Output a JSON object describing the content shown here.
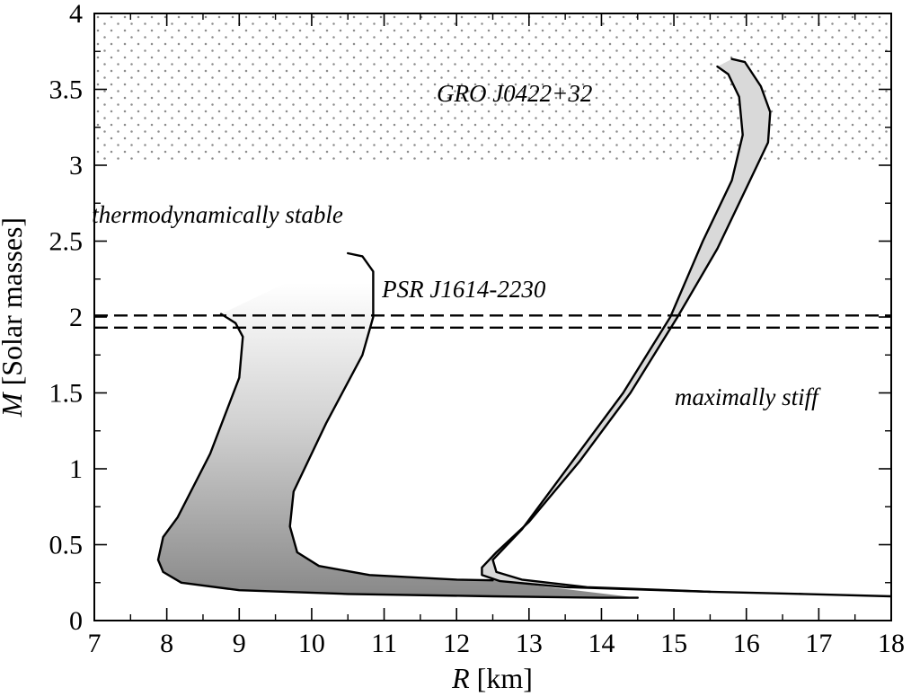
{
  "chart_data": {
    "type": "line",
    "title": "",
    "xlabel": {
      "var": "R",
      "unit": " [km]"
    },
    "ylabel": {
      "var": "M",
      "unit": " [Solar masses]"
    },
    "xlim": [
      7,
      18
    ],
    "ylim": [
      0,
      4
    ],
    "xticks": [
      7,
      8,
      9,
      10,
      11,
      12,
      13,
      14,
      15,
      16,
      17,
      18
    ],
    "yticks": [
      0,
      0.5,
      1,
      1.5,
      2,
      2.5,
      3,
      3.5,
      4
    ],
    "ytick_labels": [
      "0",
      "0.5",
      "1",
      "1.5",
      "2",
      "2.5",
      "3",
      "3.5",
      "4"
    ],
    "grid": false,
    "regions": [
      {
        "name": "GRO J0422+32",
        "type": "dotted-band",
        "y_range": [
          3.02,
          4.0
        ],
        "color": "#8c8c8c"
      }
    ],
    "reference_lines": [
      {
        "name": "PSR J1614-2230",
        "style": "dashed",
        "y": [
          2.01,
          1.93
        ]
      }
    ],
    "annotations": [
      {
        "text": "GRO J0422+32",
        "x": 12.8,
        "y": 3.42
      },
      {
        "text": "thermodynamically stable",
        "x": 8.7,
        "y": 2.62
      },
      {
        "text": "PSR J1614-2230",
        "x": 12.1,
        "y": 2.13
      },
      {
        "text": "maximally stiff",
        "x": 16.0,
        "y": 1.42
      }
    ],
    "bands": [
      {
        "group": "thermodynamically stable",
        "fill_gradient": [
          "#ffffff",
          "#d6d6d6",
          "#888888"
        ],
        "curves": [
          {
            "role": "left-boundary",
            "points": [
              [
                8.75,
                2.02
              ],
              [
                8.95,
                1.96
              ],
              [
                9.05,
                1.87
              ],
              [
                9.0,
                1.6
              ],
              [
                8.6,
                1.1
              ],
              [
                8.15,
                0.68
              ],
              [
                7.95,
                0.55
              ],
              [
                7.88,
                0.4
              ],
              [
                7.95,
                0.32
              ],
              [
                8.2,
                0.25
              ],
              [
                9.0,
                0.2
              ],
              [
                10.5,
                0.175
              ],
              [
                12.5,
                0.16
              ],
              [
                14.0,
                0.15
              ],
              [
                14.5,
                0.15
              ]
            ]
          },
          {
            "role": "right-boundary",
            "points": [
              [
                10.5,
                2.42
              ],
              [
                10.7,
                2.4
              ],
              [
                10.85,
                2.3
              ],
              [
                10.85,
                2.0
              ],
              [
                10.7,
                1.75
              ],
              [
                10.2,
                1.3
              ],
              [
                9.75,
                0.85
              ],
              [
                9.7,
                0.62
              ],
              [
                9.8,
                0.45
              ],
              [
                10.1,
                0.36
              ],
              [
                10.8,
                0.3
              ],
              [
                12.0,
                0.27
              ],
              [
                12.5,
                0.265
              ]
            ]
          }
        ]
      },
      {
        "group": "maximally stiff",
        "fill": "#d9d9d9",
        "curves": [
          {
            "role": "inner-boundary",
            "points": [
              [
                15.6,
                3.65
              ],
              [
                15.75,
                3.6
              ],
              [
                15.9,
                3.45
              ],
              [
                15.95,
                3.2
              ],
              [
                15.8,
                2.9
              ],
              [
                15.4,
                2.5
              ],
              [
                14.95,
                2.0
              ],
              [
                14.3,
                1.5
              ],
              [
                13.6,
                1.05
              ],
              [
                12.9,
                0.6
              ],
              [
                12.5,
                0.4
              ],
              [
                12.55,
                0.32
              ],
              [
                12.9,
                0.27
              ],
              [
                13.8,
                0.22
              ],
              [
                15.5,
                0.19
              ],
              [
                16.8,
                0.175
              ],
              [
                18.0,
                0.16
              ]
            ]
          },
          {
            "role": "outer-boundary",
            "points": [
              [
                15.8,
                3.7
              ],
              [
                15.98,
                3.68
              ],
              [
                16.2,
                3.52
              ],
              [
                16.33,
                3.35
              ],
              [
                16.3,
                3.15
              ],
              [
                16.05,
                2.9
              ],
              [
                15.6,
                2.45
              ],
              [
                15.05,
                2.0
              ],
              [
                14.4,
                1.5
              ],
              [
                13.7,
                1.05
              ],
              [
                13.0,
                0.65
              ],
              [
                12.55,
                0.45
              ],
              [
                12.35,
                0.35
              ],
              [
                12.35,
                0.3
              ],
              [
                12.6,
                0.26
              ],
              [
                13.5,
                0.22
              ],
              [
                15.5,
                0.19
              ]
            ]
          }
        ]
      }
    ]
  }
}
